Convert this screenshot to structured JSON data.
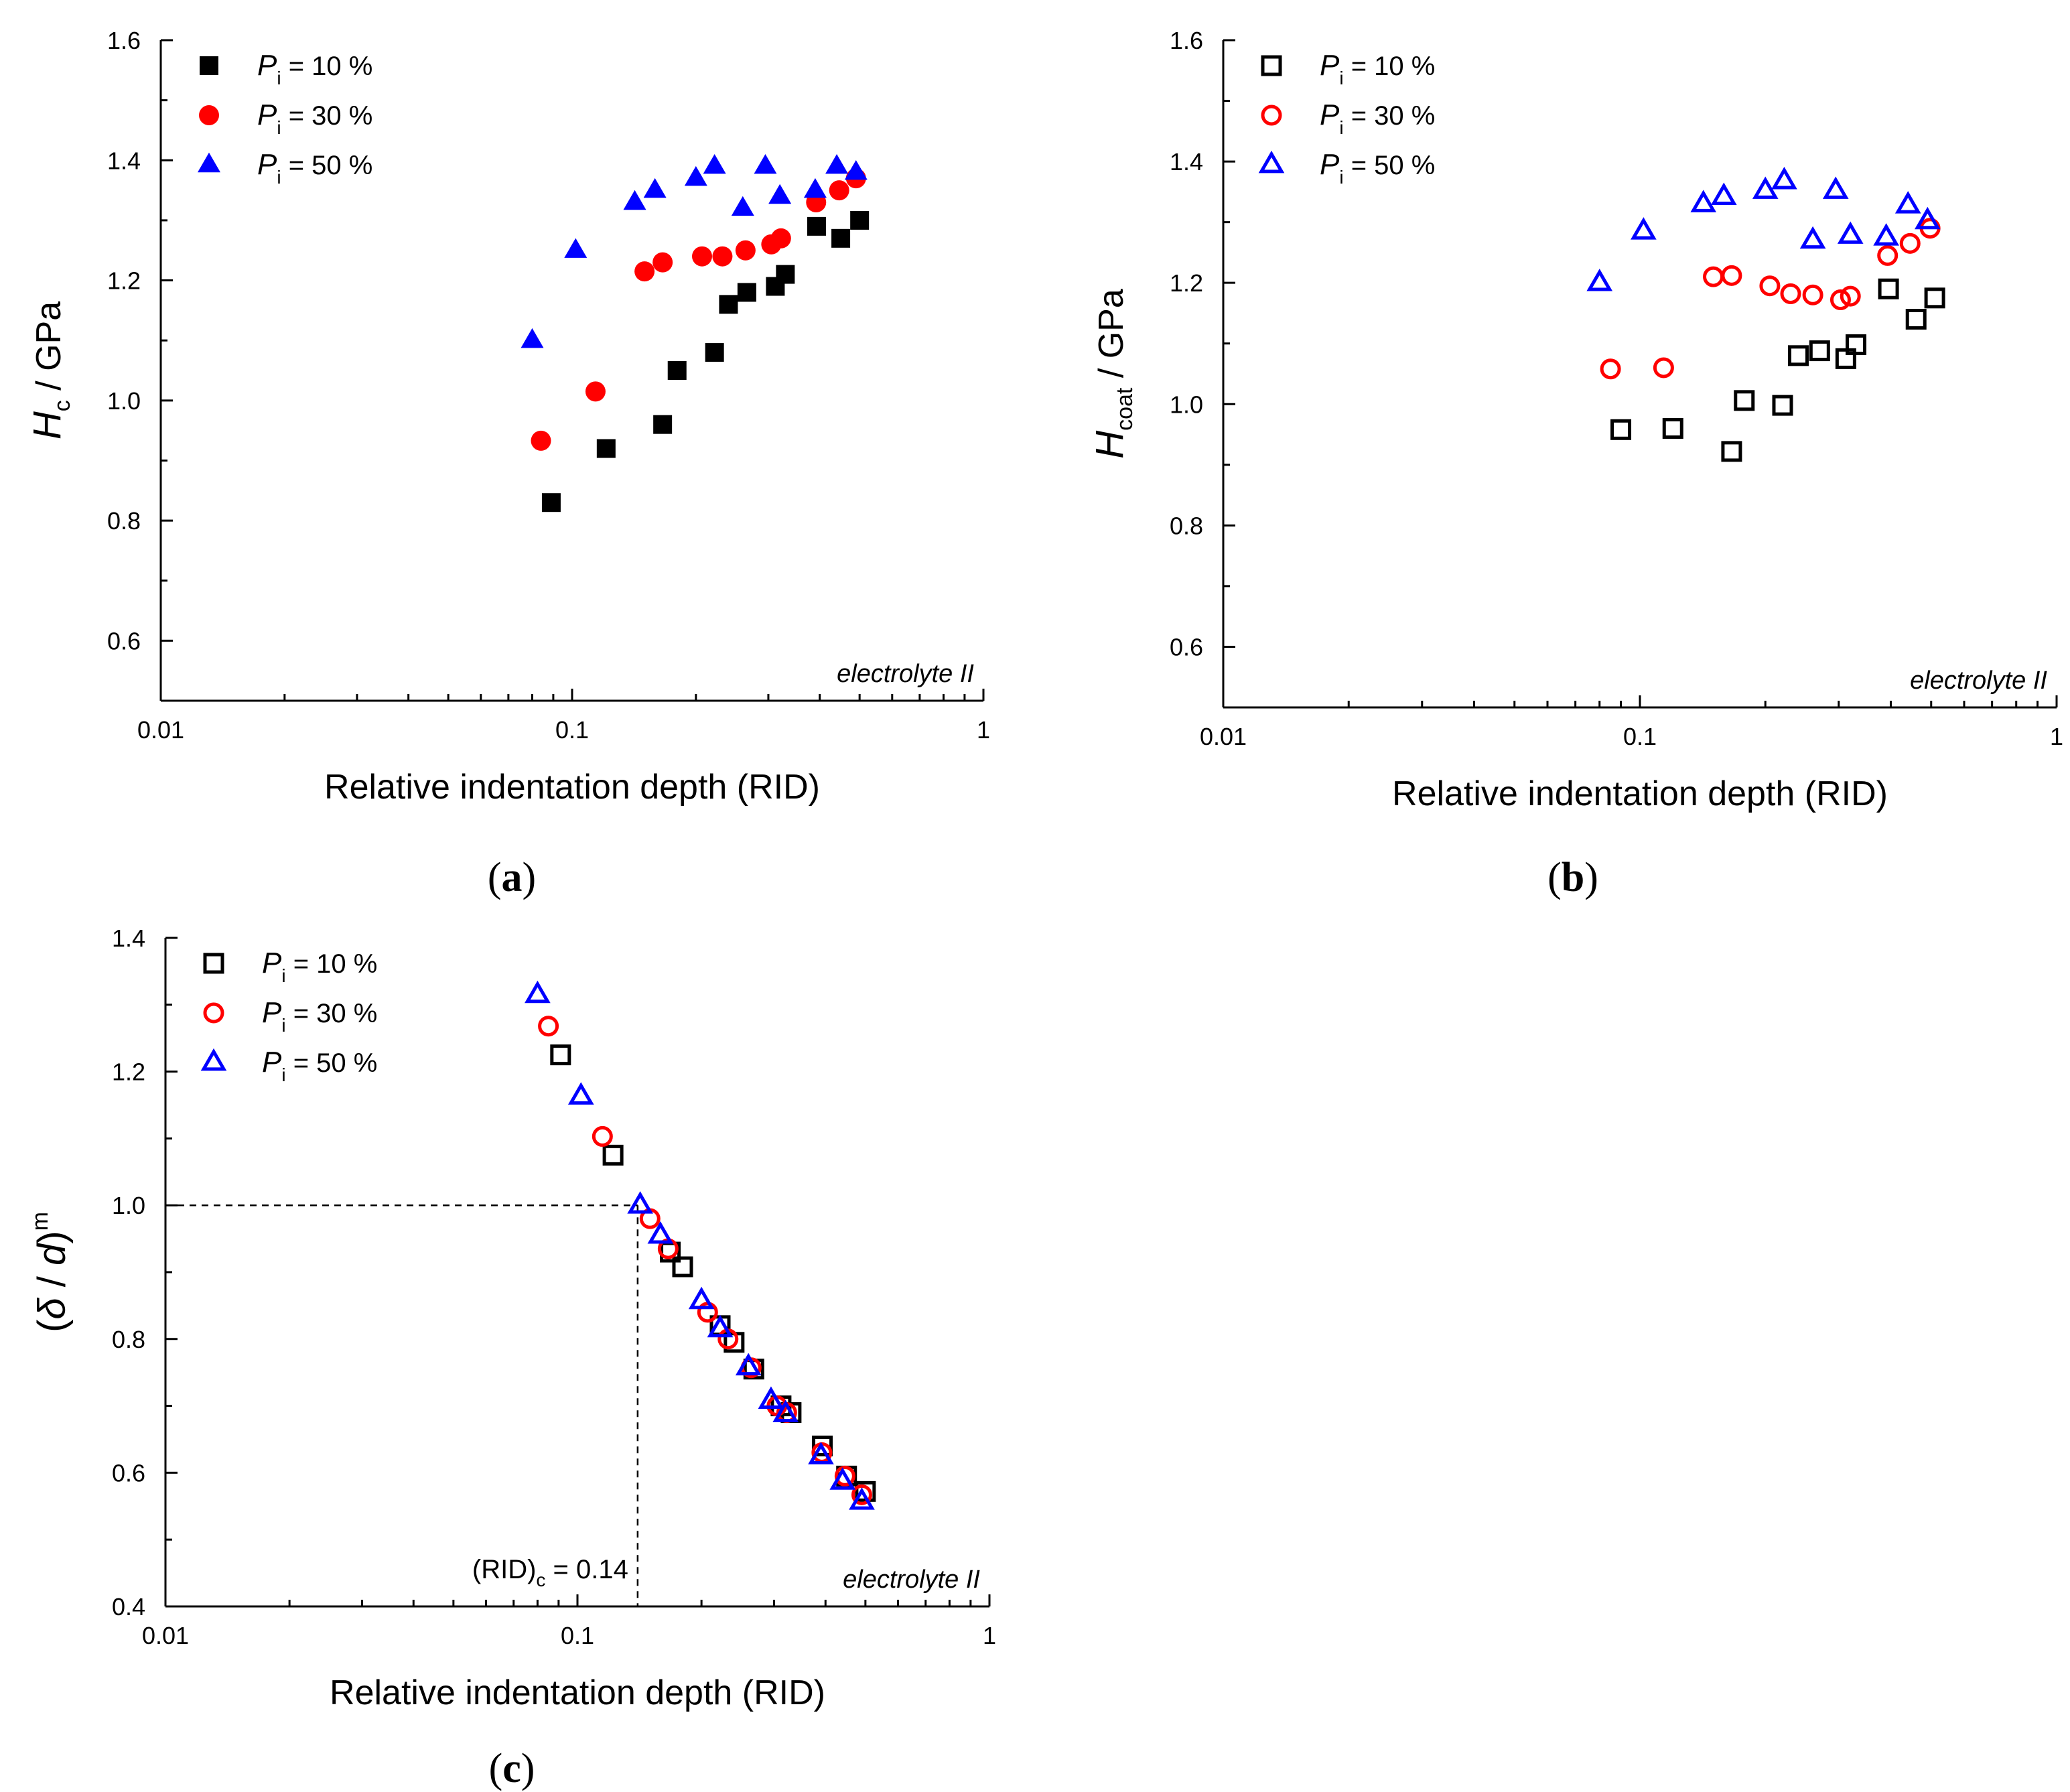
{
  "chart_data": [
    {
      "id": "a",
      "type": "scatter",
      "caption": "a",
      "xlabel": "Relative indentation depth (RID)",
      "ylabel_main": "H",
      "ylabel_sub": "c",
      "ylabel_tail": " / GPa",
      "xscale": "log",
      "xlim": [
        0.01,
        1
      ],
      "ylim": [
        0.5,
        1.6
      ],
      "xticks": [
        "0.01",
        "0.1",
        "1"
      ],
      "yticks": [
        "0.6",
        "0.8",
        "1.0",
        "1.2",
        "1.4",
        "1.6"
      ],
      "annotation": "electrolyte II",
      "legend_position": "top-left",
      "series": [
        {
          "label_main": "P",
          "label_sub": "i",
          "label_tail": " = 10 %",
          "marker": "square",
          "filled": true,
          "color": "#000000",
          "x": [
            0.089,
            0.121,
            0.166,
            0.18,
            0.222,
            0.24,
            0.266,
            0.312,
            0.33,
            0.393,
            0.45,
            0.5
          ],
          "y": [
            0.83,
            0.92,
            0.96,
            1.05,
            1.08,
            1.16,
            1.18,
            1.19,
            1.21,
            1.29,
            1.27,
            1.3
          ]
        },
        {
          "label_main": "P",
          "label_sub": "i",
          "label_tail": " = 30 %",
          "marker": "circle",
          "filled": true,
          "color": "#ff0000",
          "x": [
            0.084,
            0.114,
            0.15,
            0.166,
            0.207,
            0.232,
            0.264,
            0.305,
            0.322,
            0.392,
            0.446,
            0.49
          ],
          "y": [
            0.933,
            1.015,
            1.215,
            1.23,
            1.24,
            1.24,
            1.25,
            1.26,
            1.27,
            1.33,
            1.35,
            1.37
          ]
        },
        {
          "label_main": "P",
          "label_sub": "i",
          "label_tail": " = 50 %",
          "marker": "triangle",
          "filled": true,
          "color": "#0000ff",
          "x": [
            0.08,
            0.102,
            0.142,
            0.159,
            0.2,
            0.222,
            0.26,
            0.295,
            0.32,
            0.39,
            0.44,
            0.49
          ],
          "y": [
            1.1,
            1.25,
            1.33,
            1.35,
            1.37,
            1.39,
            1.32,
            1.39,
            1.34,
            1.35,
            1.39,
            1.38
          ]
        }
      ]
    },
    {
      "id": "b",
      "type": "scatter",
      "caption": "b",
      "xlabel": "Relative indentation depth (RID)",
      "ylabel_main": "H",
      "ylabel_sub": "coat",
      "ylabel_tail": " / GPa",
      "xscale": "log",
      "xlim": [
        0.01,
        1
      ],
      "ylim": [
        0.5,
        1.6
      ],
      "xticks": [
        "0.01",
        "0.1",
        "1"
      ],
      "yticks": [
        "0.6",
        "0.8",
        "1.0",
        "1.2",
        "1.4",
        "1.6"
      ],
      "annotation": "electrolyte II",
      "legend_position": "top-left",
      "series": [
        {
          "label_main": "P",
          "label_sub": "i",
          "label_tail": " = 10 %",
          "marker": "square",
          "filled": false,
          "color": "#000000",
          "x": [
            0.09,
            0.12,
            0.166,
            0.178,
            0.22,
            0.24,
            0.27,
            0.312,
            0.33,
            0.395,
            0.46,
            0.51
          ],
          "y": [
            0.958,
            0.96,
            0.922,
            1.006,
            0.998,
            1.08,
            1.088,
            1.075,
            1.098,
            1.19,
            1.14,
            1.175
          ]
        },
        {
          "label_main": "P",
          "label_sub": "i",
          "label_tail": " = 30 %",
          "marker": "circle",
          "filled": false,
          "color": "#ff0000",
          "x": [
            0.085,
            0.114,
            0.15,
            0.166,
            0.205,
            0.23,
            0.26,
            0.303,
            0.32,
            0.393,
            0.445,
            0.497
          ],
          "y": [
            1.058,
            1.06,
            1.21,
            1.212,
            1.195,
            1.182,
            1.18,
            1.172,
            1.178,
            1.245,
            1.265,
            1.29
          ]
        },
        {
          "label_main": "P",
          "label_sub": "i",
          "label_tail": " = 50 %",
          "marker": "triangle",
          "filled": false,
          "color": "#0000ff",
          "x": [
            0.08,
            0.102,
            0.142,
            0.159,
            0.2,
            0.222,
            0.26,
            0.295,
            0.32,
            0.39,
            0.44,
            0.49
          ],
          "y": [
            1.2,
            1.285,
            1.33,
            1.342,
            1.352,
            1.368,
            1.27,
            1.352,
            1.278,
            1.275,
            1.328,
            1.302
          ]
        }
      ]
    },
    {
      "id": "c",
      "type": "scatter",
      "caption": "c",
      "xlabel": "Relative indentation depth (RID)",
      "ylabel_open": "(",
      "ylabel_delta": "δ",
      "ylabel_slash": " / ",
      "ylabel_d": "d",
      "ylabel_close": ")",
      "ylabel_sup": "m",
      "xscale": "log",
      "xlim": [
        0.01,
        1
      ],
      "ylim": [
        0.4,
        1.4
      ],
      "xticks": [
        "0.01",
        "0.1",
        "1"
      ],
      "yticks": [
        "0.4",
        "0.6",
        "0.8",
        "1.0",
        "1.2",
        "1.4"
      ],
      "annotation": "electrolyte II",
      "critical_label_main": "(RID)",
      "critical_label_sub": "c",
      "critical_label_tail": " = 0.14",
      "critical_x": 0.14,
      "critical_y": 1.0,
      "legend_position": "top-left",
      "series": [
        {
          "label_main": "P",
          "label_sub": "i",
          "label_tail": " = 10 %",
          "marker": "square",
          "filled": false,
          "color": "#000000",
          "x": [
            0.091,
            0.122,
            0.168,
            0.18,
            0.222,
            0.24,
            0.268,
            0.312,
            0.33,
            0.393,
            0.45,
            0.5
          ],
          "y": [
            1.225,
            1.075,
            0.93,
            0.908,
            0.82,
            0.795,
            0.755,
            0.7,
            0.69,
            0.64,
            0.595,
            0.572
          ]
        },
        {
          "label_main": "P",
          "label_sub": "i",
          "label_tail": " = 30 %",
          "marker": "circle",
          "filled": false,
          "color": "#ff0000",
          "x": [
            0.085,
            0.115,
            0.15,
            0.166,
            0.207,
            0.232,
            0.264,
            0.305,
            0.322,
            0.392,
            0.446,
            0.49
          ],
          "y": [
            1.268,
            1.103,
            0.98,
            0.935,
            0.84,
            0.8,
            0.757,
            0.7,
            0.69,
            0.63,
            0.595,
            0.567
          ]
        },
        {
          "label_main": "P",
          "label_sub": "i",
          "label_tail": " = 50 %",
          "marker": "triangle",
          "filled": false,
          "color": "#0000ff",
          "x": [
            0.08,
            0.102,
            0.142,
            0.159,
            0.2,
            0.222,
            0.26,
            0.295,
            0.32,
            0.39,
            0.44,
            0.49
          ],
          "y": [
            1.315,
            1.163,
            1.0,
            0.955,
            0.857,
            0.815,
            0.758,
            0.708,
            0.688,
            0.625,
            0.587,
            0.557
          ]
        }
      ]
    }
  ]
}
